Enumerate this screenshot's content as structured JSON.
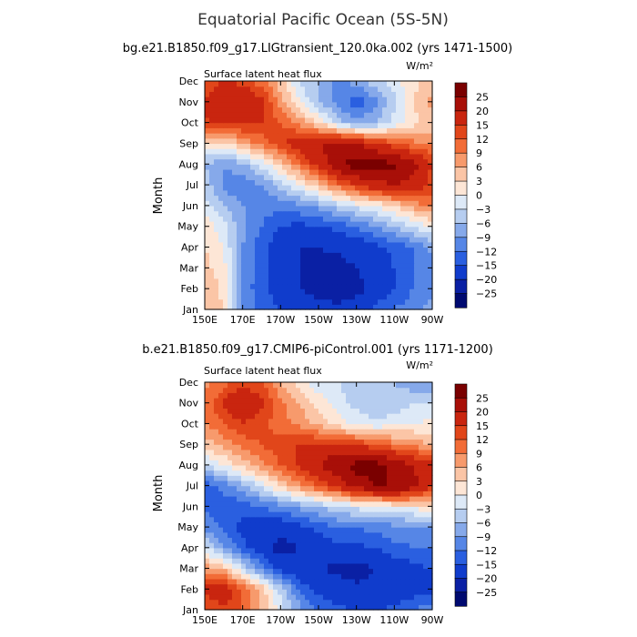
{
  "chart_data": {
    "type": "heatmap",
    "title": "Equatorial Pacific Ocean (5S-5N)",
    "units": "W/m²",
    "ylabel": "Month",
    "x_ticks": [
      "150E",
      "170E",
      "170W",
      "150W",
      "130W",
      "110W",
      "90W"
    ],
    "x_values": [
      150,
      170,
      190,
      210,
      230,
      250,
      270
    ],
    "y_ticks": [
      "Jan",
      "Feb",
      "Mar",
      "Apr",
      "May",
      "Jun",
      "Jul",
      "Aug",
      "Sep",
      "Oct",
      "Nov",
      "Dec"
    ],
    "colorbar": {
      "labels": [
        "25",
        "20",
        "15",
        "12",
        "9",
        "6",
        "3",
        "0",
        "−3",
        "−6",
        "−9",
        "−12",
        "−15",
        "−20",
        "−25"
      ],
      "colors": [
        "#7a0000",
        "#a80f08",
        "#c9250f",
        "#e1461a",
        "#f26c37",
        "#f79a6c",
        "#fbc5a6",
        "#fde6d6",
        "#dde9f7",
        "#b6cdf0",
        "#86a9ea",
        "#5686e6",
        "#2a5fe0",
        "#103ccc",
        "#0a20a4",
        "#000a70"
      ]
    },
    "panels": [
      {
        "title": "bg.e21.B1850.f09_g17.LIGtransient_120.0ka.002 (yrs 1471-1500)",
        "variable": "Surface latent heat flux",
        "units": "W/m²",
        "x_deg": [
          150,
          160,
          170,
          180,
          190,
          200,
          210,
          220,
          230,
          240,
          250,
          260,
          270
        ],
        "months": [
          "Jan",
          "Feb",
          "Mar",
          "Apr",
          "May",
          "Jun",
          "Jul",
          "Aug",
          "Sep",
          "Oct",
          "Nov",
          "Dec"
        ],
        "values": [
          [
            6,
            3,
            -9,
            -13,
            -15,
            -16,
            -18,
            -18,
            -16,
            -14,
            -12,
            -10,
            -8
          ],
          [
            6,
            2,
            -10,
            -14,
            -17,
            -20,
            -22,
            -24,
            -22,
            -18,
            -15,
            -12,
            -10
          ],
          [
            4,
            1,
            -9,
            -14,
            -18,
            -20,
            -22,
            -22,
            -20,
            -18,
            -15,
            -12,
            -10
          ],
          [
            3,
            0,
            -9,
            -14,
            -18,
            -20,
            -20,
            -19,
            -18,
            -16,
            -14,
            -12,
            -8
          ],
          [
            2,
            -2,
            -8,
            -12,
            -15,
            -16,
            -15,
            -14,
            -12,
            -9,
            -6,
            -3,
            0
          ],
          [
            -2,
            -6,
            -9,
            -11,
            -11,
            -10,
            -8,
            -5,
            -2,
            0,
            3,
            7,
            10
          ],
          [
            -4,
            -10,
            -11,
            -9,
            -5,
            0,
            5,
            10,
            15,
            18,
            20,
            18,
            13
          ],
          [
            -6,
            -9,
            -7,
            -2,
            4,
            10,
            17,
            24,
            28,
            28,
            26,
            22,
            15
          ],
          [
            2,
            2,
            6,
            10,
            14,
            18,
            20,
            22,
            20,
            16,
            13,
            10,
            8
          ],
          [
            14,
            16,
            16,
            15,
            12,
            8,
            3,
            -4,
            -8,
            -6,
            -2,
            2,
            5
          ],
          [
            16,
            20,
            20,
            16,
            8,
            0,
            -6,
            -10,
            -14,
            -10,
            -4,
            3,
            7
          ],
          [
            12,
            15,
            14,
            10,
            4,
            -3,
            -6,
            -10,
            -8,
            -4,
            -1,
            2,
            4
          ]
        ]
      },
      {
        "title": "b.e21.B1850.f09_g17.CMIP6-piControl.001 (yrs 1171-1200)",
        "variable": "Surface latent heat flux",
        "units": "W/m²",
        "x_deg": [
          150,
          160,
          170,
          180,
          190,
          200,
          210,
          220,
          230,
          240,
          250,
          260,
          270
        ],
        "months": [
          "Jan",
          "Feb",
          "Mar",
          "Apr",
          "May",
          "Jun",
          "Jul",
          "Aug",
          "Sep",
          "Oct",
          "Nov",
          "Dec"
        ],
        "values": [
          [
            12,
            14,
            12,
            6,
            -2,
            -8,
            -12,
            -14,
            -15,
            -15,
            -14,
            -12,
            -10
          ],
          [
            16,
            18,
            12,
            5,
            -4,
            -12,
            -16,
            -18,
            -19,
            -19,
            -18,
            -17,
            -16
          ],
          [
            8,
            5,
            -3,
            -10,
            -16,
            -19,
            -20,
            -21,
            -22,
            -20,
            -18,
            -16,
            -15
          ],
          [
            -2,
            -8,
            -14,
            -18,
            -22,
            -20,
            -18,
            -16,
            -16,
            -15,
            -13,
            -12,
            -12
          ],
          [
            -10,
            -13,
            -16,
            -18,
            -18,
            -16,
            -14,
            -12,
            -12,
            -11,
            -10,
            -10,
            -9
          ],
          [
            -12,
            -14,
            -14,
            -12,
            -10,
            -8,
            -6,
            -4,
            -2,
            -1,
            0,
            1,
            3
          ],
          [
            -14,
            -11,
            -7,
            -2,
            3,
            8,
            12,
            16,
            22,
            25,
            25,
            22,
            15
          ],
          [
            -4,
            0,
            4,
            8,
            12,
            16,
            20,
            24,
            27,
            27,
            24,
            20,
            16
          ],
          [
            4,
            7,
            10,
            12,
            14,
            15,
            16,
            16,
            15,
            12,
            10,
            8,
            6
          ],
          [
            9,
            12,
            15,
            13,
            10,
            8,
            5,
            2,
            -1,
            -2,
            -1,
            0,
            1
          ],
          [
            10,
            16,
            20,
            16,
            10,
            6,
            2,
            -2,
            -4,
            -6,
            -5,
            -3,
            -3
          ],
          [
            8,
            10,
            14,
            12,
            6,
            2,
            -2,
            -3,
            -4,
            -6,
            -6,
            -8,
            -9
          ]
        ]
      }
    ]
  }
}
